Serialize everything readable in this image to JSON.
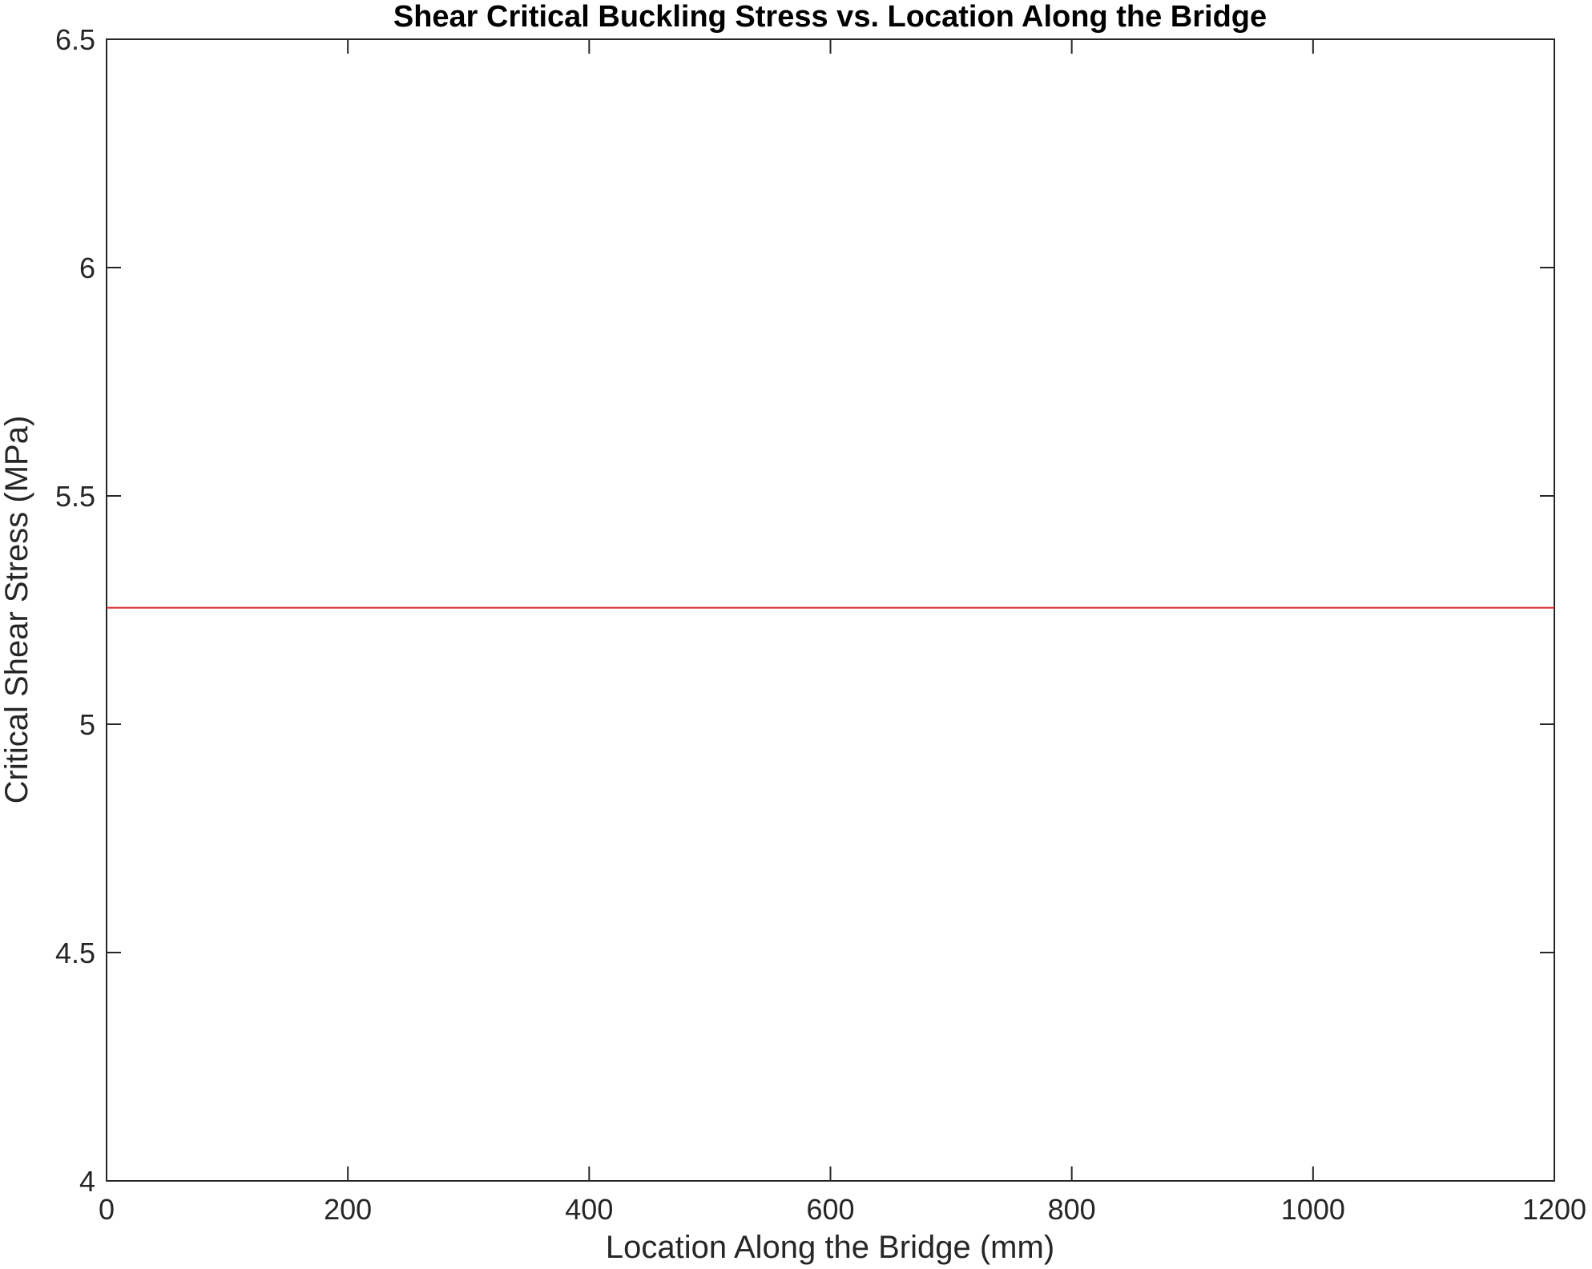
{
  "chart_data": {
    "type": "line",
    "title": "Shear Critical Buckling Stress vs. Location Along the Bridge",
    "xlabel": "Location Along the Bridge (mm)",
    "ylabel": "Critical Shear Stress (MPa)",
    "xlim": [
      0,
      1200
    ],
    "ylim": [
      4,
      6.5
    ],
    "xticks": [
      0,
      200,
      400,
      600,
      800,
      1000,
      1200
    ],
    "yticks": [
      4,
      4.5,
      5,
      5.5,
      6,
      6.5
    ],
    "xtick_labels": [
      "0",
      "200",
      "400",
      "600",
      "800",
      "1000",
      "1200"
    ],
    "ytick_labels": [
      "4",
      "4.5",
      "5",
      "5.5",
      "6",
      "6.5"
    ],
    "grid": false,
    "series": [
      {
        "x": [
          0,
          1200
        ],
        "y": [
          5.255,
          5.255
        ],
        "color": "#d62728"
      }
    ]
  }
}
